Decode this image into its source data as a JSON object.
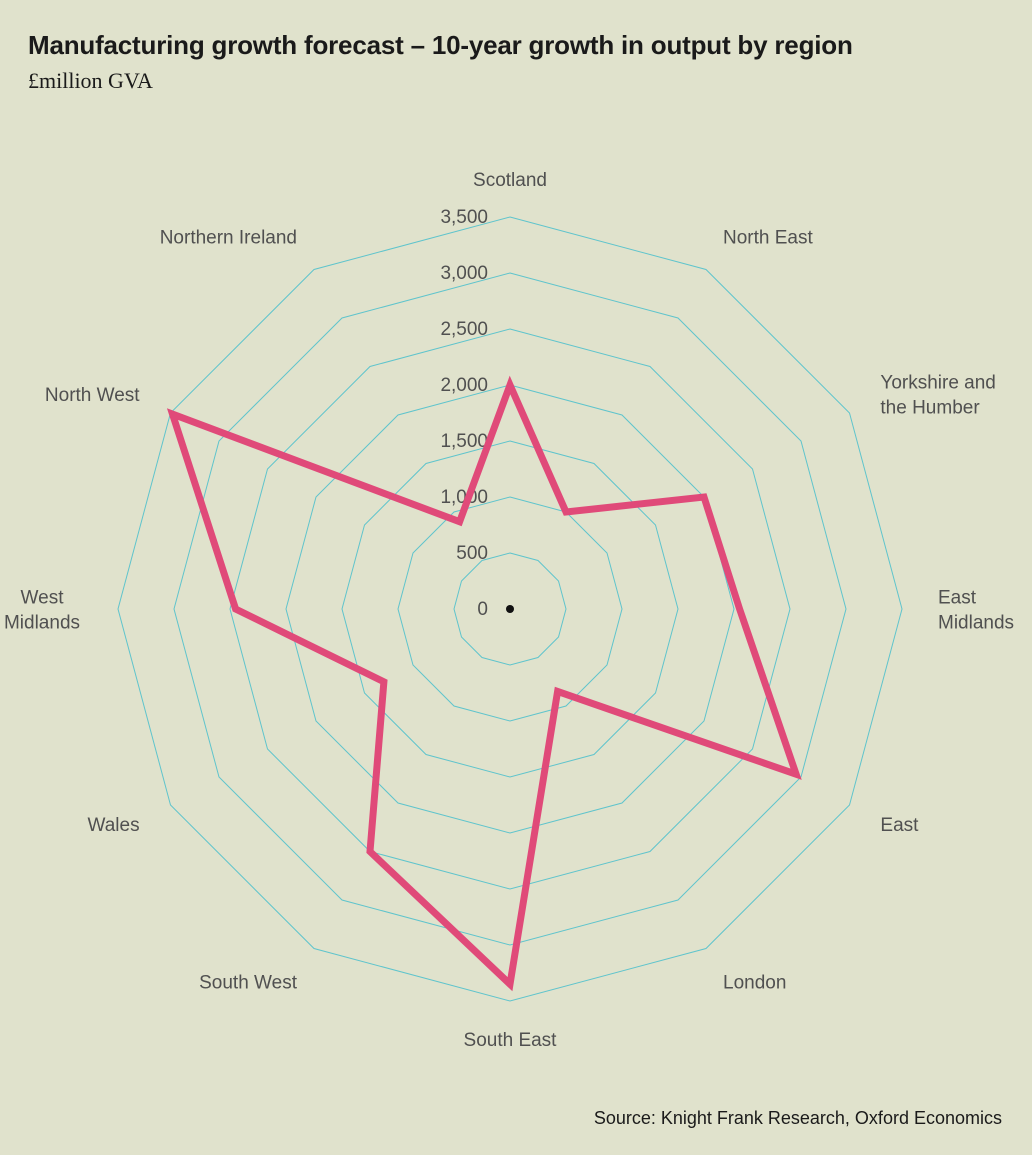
{
  "title": "Manufacturing growth forecast – 10-year growth in output by region",
  "subtitle": "£million GVA",
  "source": "Source: Knight Frank Research, Oxford Economics",
  "colors": {
    "background": "#e0e2cc",
    "grid": "#5fc4cc",
    "series": "#e04a79",
    "text": "#505050"
  },
  "chart_data": {
    "type": "radar",
    "title": "Manufacturing growth forecast – 10-year growth in output by region",
    "subtitle": "£million GVA",
    "categories": [
      "Scotland",
      "North East",
      "Yorkshire and the Humber",
      "East Midlands",
      "East",
      "London",
      "South East",
      "South West",
      "Wales",
      "West Midlands",
      "North West",
      "Northern Ireland"
    ],
    "series": [
      {
        "values": [
          2000,
          1000,
          2000,
          2050,
          2950,
          850,
          3350,
          2500,
          1300,
          2450,
          3480,
          900
        ]
      }
    ],
    "rlim": [
      0,
      3500
    ],
    "ticks": [
      0,
      500,
      1000,
      1500,
      2000,
      2500,
      3000,
      3500
    ],
    "tick_labels": [
      "0",
      "500",
      "1,000",
      "1,500",
      "2,000",
      "2,500",
      "3,000",
      "3,500"
    ],
    "grid": true,
    "legend": "none"
  }
}
